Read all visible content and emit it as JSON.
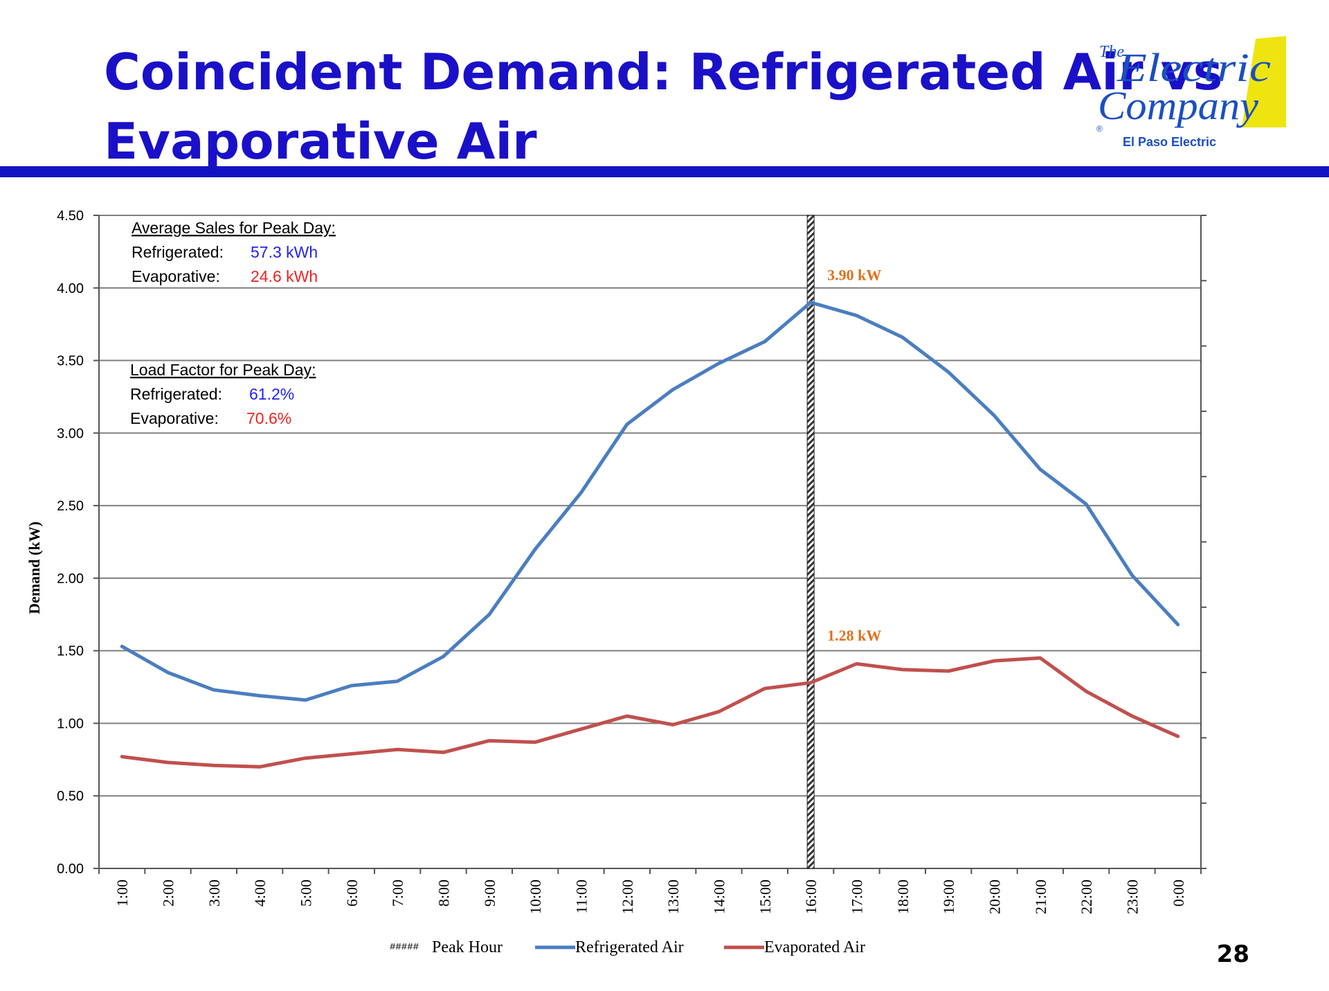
{
  "slide": {
    "title_line1": "Coincident Demand: Refrigerated Air vs",
    "title_line2": "Evaporative Air",
    "page_number": "28",
    "accent_color": "#1313c4"
  },
  "logo": {
    "text_top": "The",
    "text_line1": "Electric",
    "text_line2": "Company",
    "registered": "®",
    "subtitle": "El Paso Electric",
    "color": "#1a4fc0",
    "accent_color": "#eee510"
  },
  "chart_data": {
    "type": "line",
    "title": "",
    "ylabel": "Demand (kW)",
    "xlabel": "",
    "ylim": [
      0,
      4.5
    ],
    "yticks": [
      "0.00",
      "0.50",
      "1.00",
      "1.50",
      "2.00",
      "2.50",
      "3.00",
      "3.50",
      "4.00",
      "4.50"
    ],
    "grid": true,
    "categories": [
      "1:00",
      "2:00",
      "3:00",
      "4:00",
      "5:00",
      "6:00",
      "7:00",
      "8:00",
      "9:00",
      "10:00",
      "11:00",
      "12:00",
      "13:00",
      "14:00",
      "15:00",
      "16:00",
      "17:00",
      "18:00",
      "19:00",
      "20:00",
      "21:00",
      "22:00",
      "23:00",
      "0:00"
    ],
    "series": [
      {
        "name": "Refrigerated Air",
        "color": "#4a7ec0",
        "values": [
          1.53,
          1.35,
          1.23,
          1.19,
          1.16,
          1.26,
          1.29,
          1.46,
          1.75,
          2.2,
          2.59,
          3.06,
          3.3,
          3.48,
          3.63,
          3.9,
          3.81,
          3.66,
          3.42,
          3.12,
          2.75,
          2.51,
          2.02,
          1.68
        ]
      },
      {
        "name": "Evaporated Air",
        "color": "#c0504d",
        "values": [
          0.77,
          0.73,
          0.71,
          0.7,
          0.76,
          0.79,
          0.82,
          0.8,
          0.88,
          0.87,
          0.96,
          1.05,
          0.99,
          1.08,
          1.24,
          1.28,
          1.41,
          1.37,
          1.36,
          1.43,
          1.45,
          1.22,
          1.05,
          0.91
        ]
      }
    ],
    "peak_hour": {
      "name": "Peak Hour",
      "category": "16:00",
      "legend_marker": "#####"
    },
    "point_labels": [
      {
        "text": "3.90 kW",
        "category": "16:00",
        "value": 3.9,
        "color": "#e0701c"
      },
      {
        "text": "1.28  kW",
        "category": "16:00",
        "value": 1.28,
        "color": "#e0701c"
      }
    ],
    "annotations": [
      {
        "heading": "Average Sales for Peak Day:",
        "rows": [
          {
            "label": "Refrigerated:",
            "value": "57.3 kWh",
            "color": "#2222ee"
          },
          {
            "label": "Evaporative:",
            "value": "24.6 kWh",
            "color": "#ee2222"
          }
        ]
      },
      {
        "heading": "Load Factor for Peak Day:",
        "rows": [
          {
            "label": "Refrigerated:",
            "value": "61.2%",
            "color": "#2222ee"
          },
          {
            "label": "Evaporative:",
            "value": "70.6%",
            "color": "#ee2222"
          }
        ]
      }
    ],
    "legend_position": "bottom"
  }
}
